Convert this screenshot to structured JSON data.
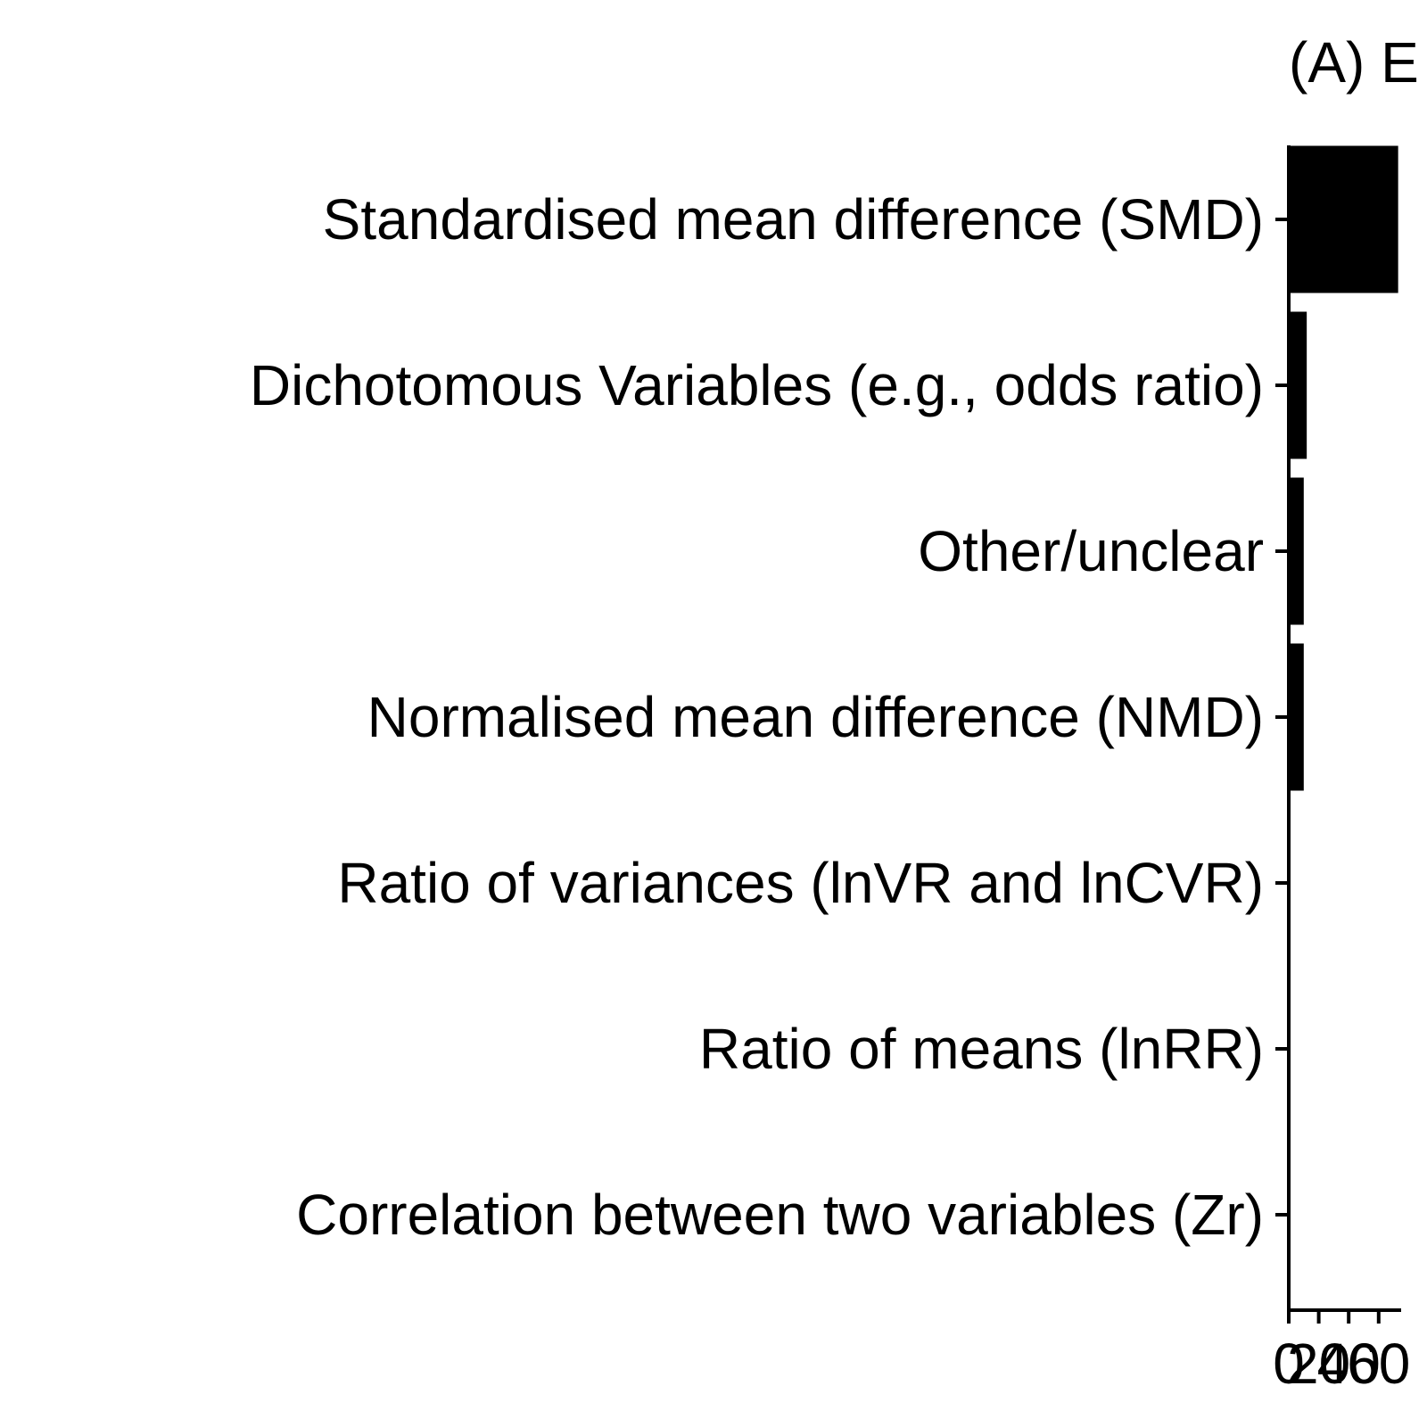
{
  "chart_data": {
    "type": "bar",
    "orientation": "horizontal",
    "title": "(A) E",
    "categories": [
      "Standardised mean difference (SMD)",
      "Dichotomous Variables (e.g., odds ratio)",
      "Other/unclear",
      "Normalised mean difference (NMD)",
      "Ratio of variances (lnVR and lnCVR)",
      "Ratio of means (lnRR)",
      "Correlation between two variables (Zr)"
    ],
    "values": [
      73,
      12,
      10,
      10,
      0,
      0,
      0
    ],
    "xlabel": "",
    "ylabel": "",
    "xlim": [
      0,
      73
    ],
    "x_ticks": [
      0,
      20,
      40,
      60
    ],
    "x_tick_labels": [
      "0",
      "20",
      "40",
      "60"
    ],
    "bar_color": "#000000",
    "grid": false,
    "legend": "none"
  }
}
